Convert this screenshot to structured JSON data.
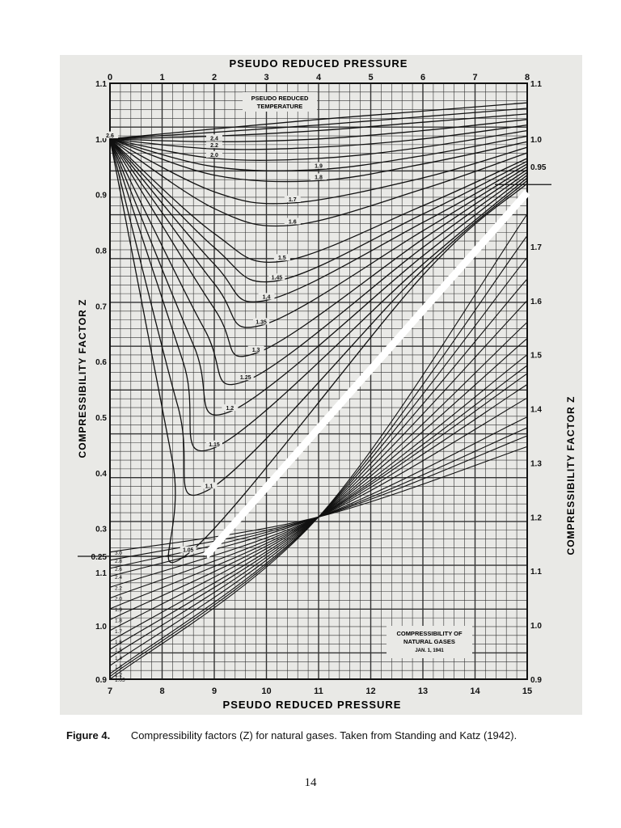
{
  "page": {
    "figure_label": "Figure 4.",
    "caption": "Compressibility factors (Z) for natural gases. Taken from Standing and Katz (1942).",
    "page_number": "14"
  },
  "chart_data": {
    "type": "line",
    "title": "COMPRESSIBILITY OF NATURAL GASES",
    "date": "JAN. 1, 1941",
    "colors": {
      "background": "#e9e9e6",
      "ink": "#111111",
      "grid": "#222222"
    },
    "grid": true,
    "top_xlabel": "PSEUDO REDUCED PRESSURE",
    "bottom_xlabel": "PSEUDO REDUCED PRESSURE",
    "left_ylabel": "COMPRESSIBILITY FACTOR Z",
    "right_ylabel": "COMPRESSIBILITY FACTOR Z",
    "temperature_label_line1": "PSEUDO REDUCED",
    "temperature_label_line2": "TEMPERATURE",
    "top_x_ticks": [
      "0",
      "1",
      "2",
      "3",
      "4",
      "5",
      "6",
      "7",
      "8"
    ],
    "bottom_x_ticks": [
      "7",
      "8",
      "9",
      "10",
      "11",
      "12",
      "13",
      "14",
      "15"
    ],
    "left_y_ticks_upper": [
      "1.1",
      "1.0",
      "0.9",
      "0.8",
      "0.7",
      "0.6",
      "0.5",
      "0.4",
      "0.3",
      "0.25"
    ],
    "left_y_ticks_lower": [
      "1.1",
      "1.0",
      "0.9"
    ],
    "right_y_ticks_upper": [
      "1.1",
      "1.0",
      "0.95"
    ],
    "right_y_ticks_lower": [
      "1.7",
      "1.6",
      "1.5",
      "1.4",
      "1.3",
      "1.2",
      "1.1",
      "1.0",
      "0.9"
    ],
    "upper_panel": {
      "x_range": [
        0,
        8
      ],
      "y_range": [
        0.25,
        1.1
      ],
      "series": [
        {
          "name": "3.0",
          "x": [
            0,
            2,
            4,
            6,
            8
          ],
          "y": [
            1.0,
            1.018,
            1.035,
            1.05,
            1.065
          ]
        },
        {
          "name": "2.8",
          "x": [
            0,
            2,
            4,
            6,
            8
          ],
          "y": [
            1.0,
            1.012,
            1.025,
            1.04,
            1.055
          ]
        },
        {
          "name": "2.6",
          "x": [
            0,
            2,
            4,
            6,
            8
          ],
          "y": [
            1.0,
            1.005,
            1.015,
            1.03,
            1.045
          ]
        },
        {
          "name": "2.4",
          "x": [
            0,
            2,
            4,
            6,
            8
          ],
          "y": [
            1.0,
            0.995,
            1.0,
            1.015,
            1.035
          ]
        },
        {
          "name": "2.2",
          "x": [
            0,
            2,
            4,
            6,
            8
          ],
          "y": [
            1.0,
            0.982,
            0.985,
            1.0,
            1.025
          ]
        },
        {
          "name": "2.0",
          "x": [
            0,
            2,
            4,
            6,
            8
          ],
          "y": [
            1.0,
            0.965,
            0.965,
            0.985,
            1.015
          ]
        },
        {
          "name": "1.9",
          "x": [
            0,
            2,
            4,
            6,
            8
          ],
          "y": [
            1.0,
            0.95,
            0.945,
            0.97,
            1.005
          ]
        },
        {
          "name": "1.8",
          "x": [
            0,
            2,
            4,
            6,
            8
          ],
          "y": [
            1.0,
            0.935,
            0.925,
            0.955,
            0.995
          ]
        },
        {
          "name": "1.7",
          "x": [
            0,
            2,
            3.5,
            6,
            8
          ],
          "y": [
            1.0,
            0.905,
            0.885,
            0.93,
            0.985
          ]
        },
        {
          "name": "1.6",
          "x": [
            0,
            2,
            3.5,
            6,
            8
          ],
          "y": [
            1.0,
            0.875,
            0.845,
            0.91,
            0.975
          ]
        },
        {
          "name": "1.5",
          "x": [
            0,
            2,
            3.3,
            6,
            8
          ],
          "y": [
            1.0,
            0.83,
            0.78,
            0.88,
            0.965
          ]
        },
        {
          "name": "1.45",
          "x": [
            0,
            2,
            3.2,
            6,
            8
          ],
          "y": [
            1.0,
            0.805,
            0.745,
            0.865,
            0.96
          ]
        },
        {
          "name": "1.4",
          "x": [
            0,
            2,
            3,
            6,
            8
          ],
          "y": [
            1.0,
            0.775,
            0.71,
            0.85,
            0.955
          ]
        },
        {
          "name": "1.35",
          "x": [
            0,
            2,
            2.9,
            6,
            8
          ],
          "y": [
            1.0,
            0.74,
            0.665,
            0.835,
            0.95
          ]
        },
        {
          "name": "1.3",
          "x": [
            0,
            2,
            2.8,
            6,
            8
          ],
          "y": [
            1.0,
            0.695,
            0.615,
            0.82,
            0.945
          ]
        },
        {
          "name": "1.25",
          "x": [
            0,
            1.8,
            2.6,
            6,
            8
          ],
          "y": [
            1.0,
            0.66,
            0.565,
            0.805,
            0.94
          ]
        },
        {
          "name": "1.2",
          "x": [
            0,
            1.6,
            2.3,
            6,
            8
          ],
          "y": [
            1.0,
            0.63,
            0.51,
            0.79,
            0.935
          ]
        },
        {
          "name": "1.15",
          "x": [
            0,
            1.4,
            2.0,
            6,
            8
          ],
          "y": [
            1.0,
            0.6,
            0.445,
            0.775,
            0.93
          ]
        },
        {
          "name": "1.1",
          "x": [
            0,
            1.3,
            1.9,
            6,
            8
          ],
          "y": [
            1.0,
            0.52,
            0.37,
            0.765,
            0.925
          ]
        },
        {
          "name": "1.05",
          "x": [
            0,
            1.2,
            1.5,
            6,
            8
          ],
          "y": [
            1.0,
            0.42,
            0.255,
            0.755,
            0.92
          ]
        }
      ]
    },
    "lower_panel": {
      "x_range": [
        7,
        15
      ],
      "y_range": [
        0.9,
        1.8
      ],
      "series": [
        {
          "name": "3.0",
          "x": [
            7,
            11,
            15
          ],
          "y": [
            1.135,
            1.2,
            1.33
          ]
        },
        {
          "name": "2.8",
          "x": [
            7,
            11,
            15
          ],
          "y": [
            1.12,
            1.2,
            1.35
          ]
        },
        {
          "name": "2.6",
          "x": [
            7,
            11,
            15
          ],
          "y": [
            1.105,
            1.2,
            1.365
          ]
        },
        {
          "name": "2.4",
          "x": [
            7,
            11,
            15
          ],
          "y": [
            1.09,
            1.2,
            1.385
          ]
        },
        {
          "name": "2.2",
          "x": [
            7,
            11,
            15
          ],
          "y": [
            1.07,
            1.2,
            1.42
          ]
        },
        {
          "name": "2.0",
          "x": [
            7,
            11,
            15
          ],
          "y": [
            1.05,
            1.2,
            1.445
          ]
        },
        {
          "name": "1.9",
          "x": [
            7,
            11,
            15
          ],
          "y": [
            1.03,
            1.2,
            1.465
          ]
        },
        {
          "name": "1.8",
          "x": [
            7,
            11,
            15
          ],
          "y": [
            1.01,
            1.2,
            1.48
          ]
        },
        {
          "name": "1.7",
          "x": [
            7,
            11,
            15
          ],
          "y": [
            0.99,
            1.2,
            1.5
          ]
        },
        {
          "name": "1.6",
          "x": [
            7,
            11,
            15
          ],
          "y": [
            0.97,
            1.2,
            1.53
          ]
        },
        {
          "name": "1.5",
          "x": [
            7,
            11,
            15
          ],
          "y": [
            0.955,
            1.2,
            1.56
          ]
        },
        {
          "name": "1.4",
          "x": [
            7,
            11,
            15
          ],
          "y": [
            0.94,
            1.2,
            1.6
          ]
        },
        {
          "name": "1.3",
          "x": [
            7,
            11,
            15
          ],
          "y": [
            0.925,
            1.2,
            1.64
          ]
        },
        {
          "name": "1.2",
          "x": [
            7,
            11,
            15
          ],
          "y": [
            0.91,
            1.2,
            1.68
          ]
        },
        {
          "name": "1.1",
          "x": [
            7,
            11,
            15
          ],
          "y": [
            0.905,
            1.2,
            1.72
          ]
        },
        {
          "name": "1.05",
          "x": [
            7,
            11,
            15
          ],
          "y": [
            0.9,
            1.2,
            1.76
          ]
        }
      ]
    }
  }
}
